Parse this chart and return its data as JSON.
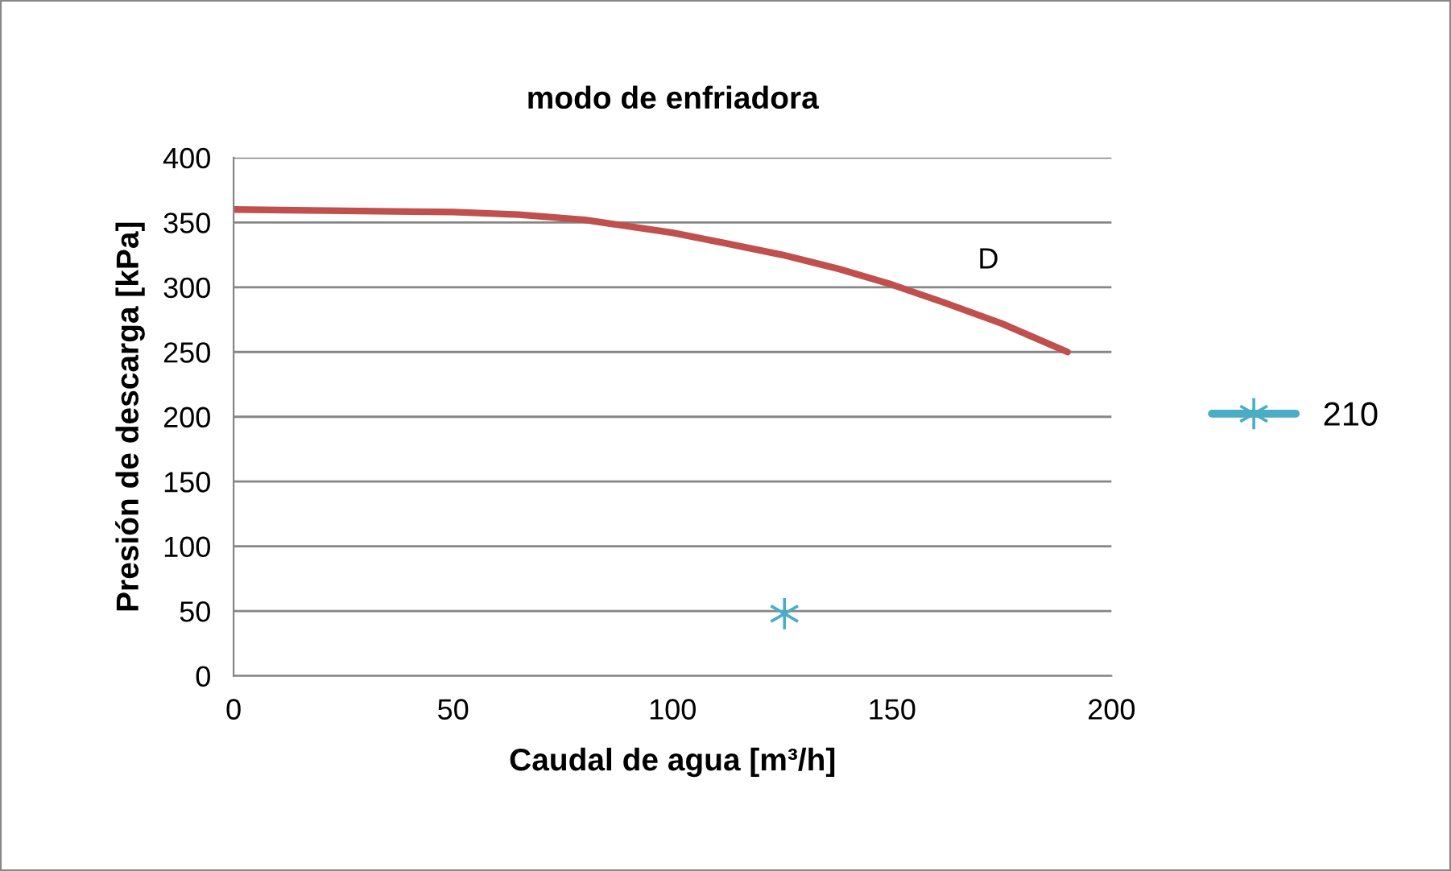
{
  "chart_data": {
    "type": "line",
    "title": "modo de enfriadora",
    "xlabel": "Caudal de agua [m³/h]",
    "ylabel": "Presión de descarga [kPa]",
    "series": [
      {
        "name": "D",
        "color": "#c0504d",
        "x": [
          0,
          25,
          50,
          65,
          80,
          90,
          100,
          112,
          125,
          138,
          150,
          162,
          175,
          190
        ],
        "values": [
          360,
          359,
          358,
          356,
          352,
          347,
          342,
          334,
          325,
          314,
          302,
          288,
          272,
          250
        ]
      },
      {
        "type": "scatter",
        "name": "210",
        "color": "#4bacc6",
        "marker": "cross",
        "x": [
          125.5
        ],
        "values": [
          48
        ]
      }
    ],
    "xlim": [
      0,
      200
    ],
    "xticks": [
      0,
      50,
      100,
      150,
      200
    ],
    "ylim": [
      0,
      400
    ],
    "yticks": [
      0,
      50,
      100,
      150,
      200,
      250,
      300,
      350,
      400
    ],
    "grid": "y",
    "legend": "right"
  }
}
